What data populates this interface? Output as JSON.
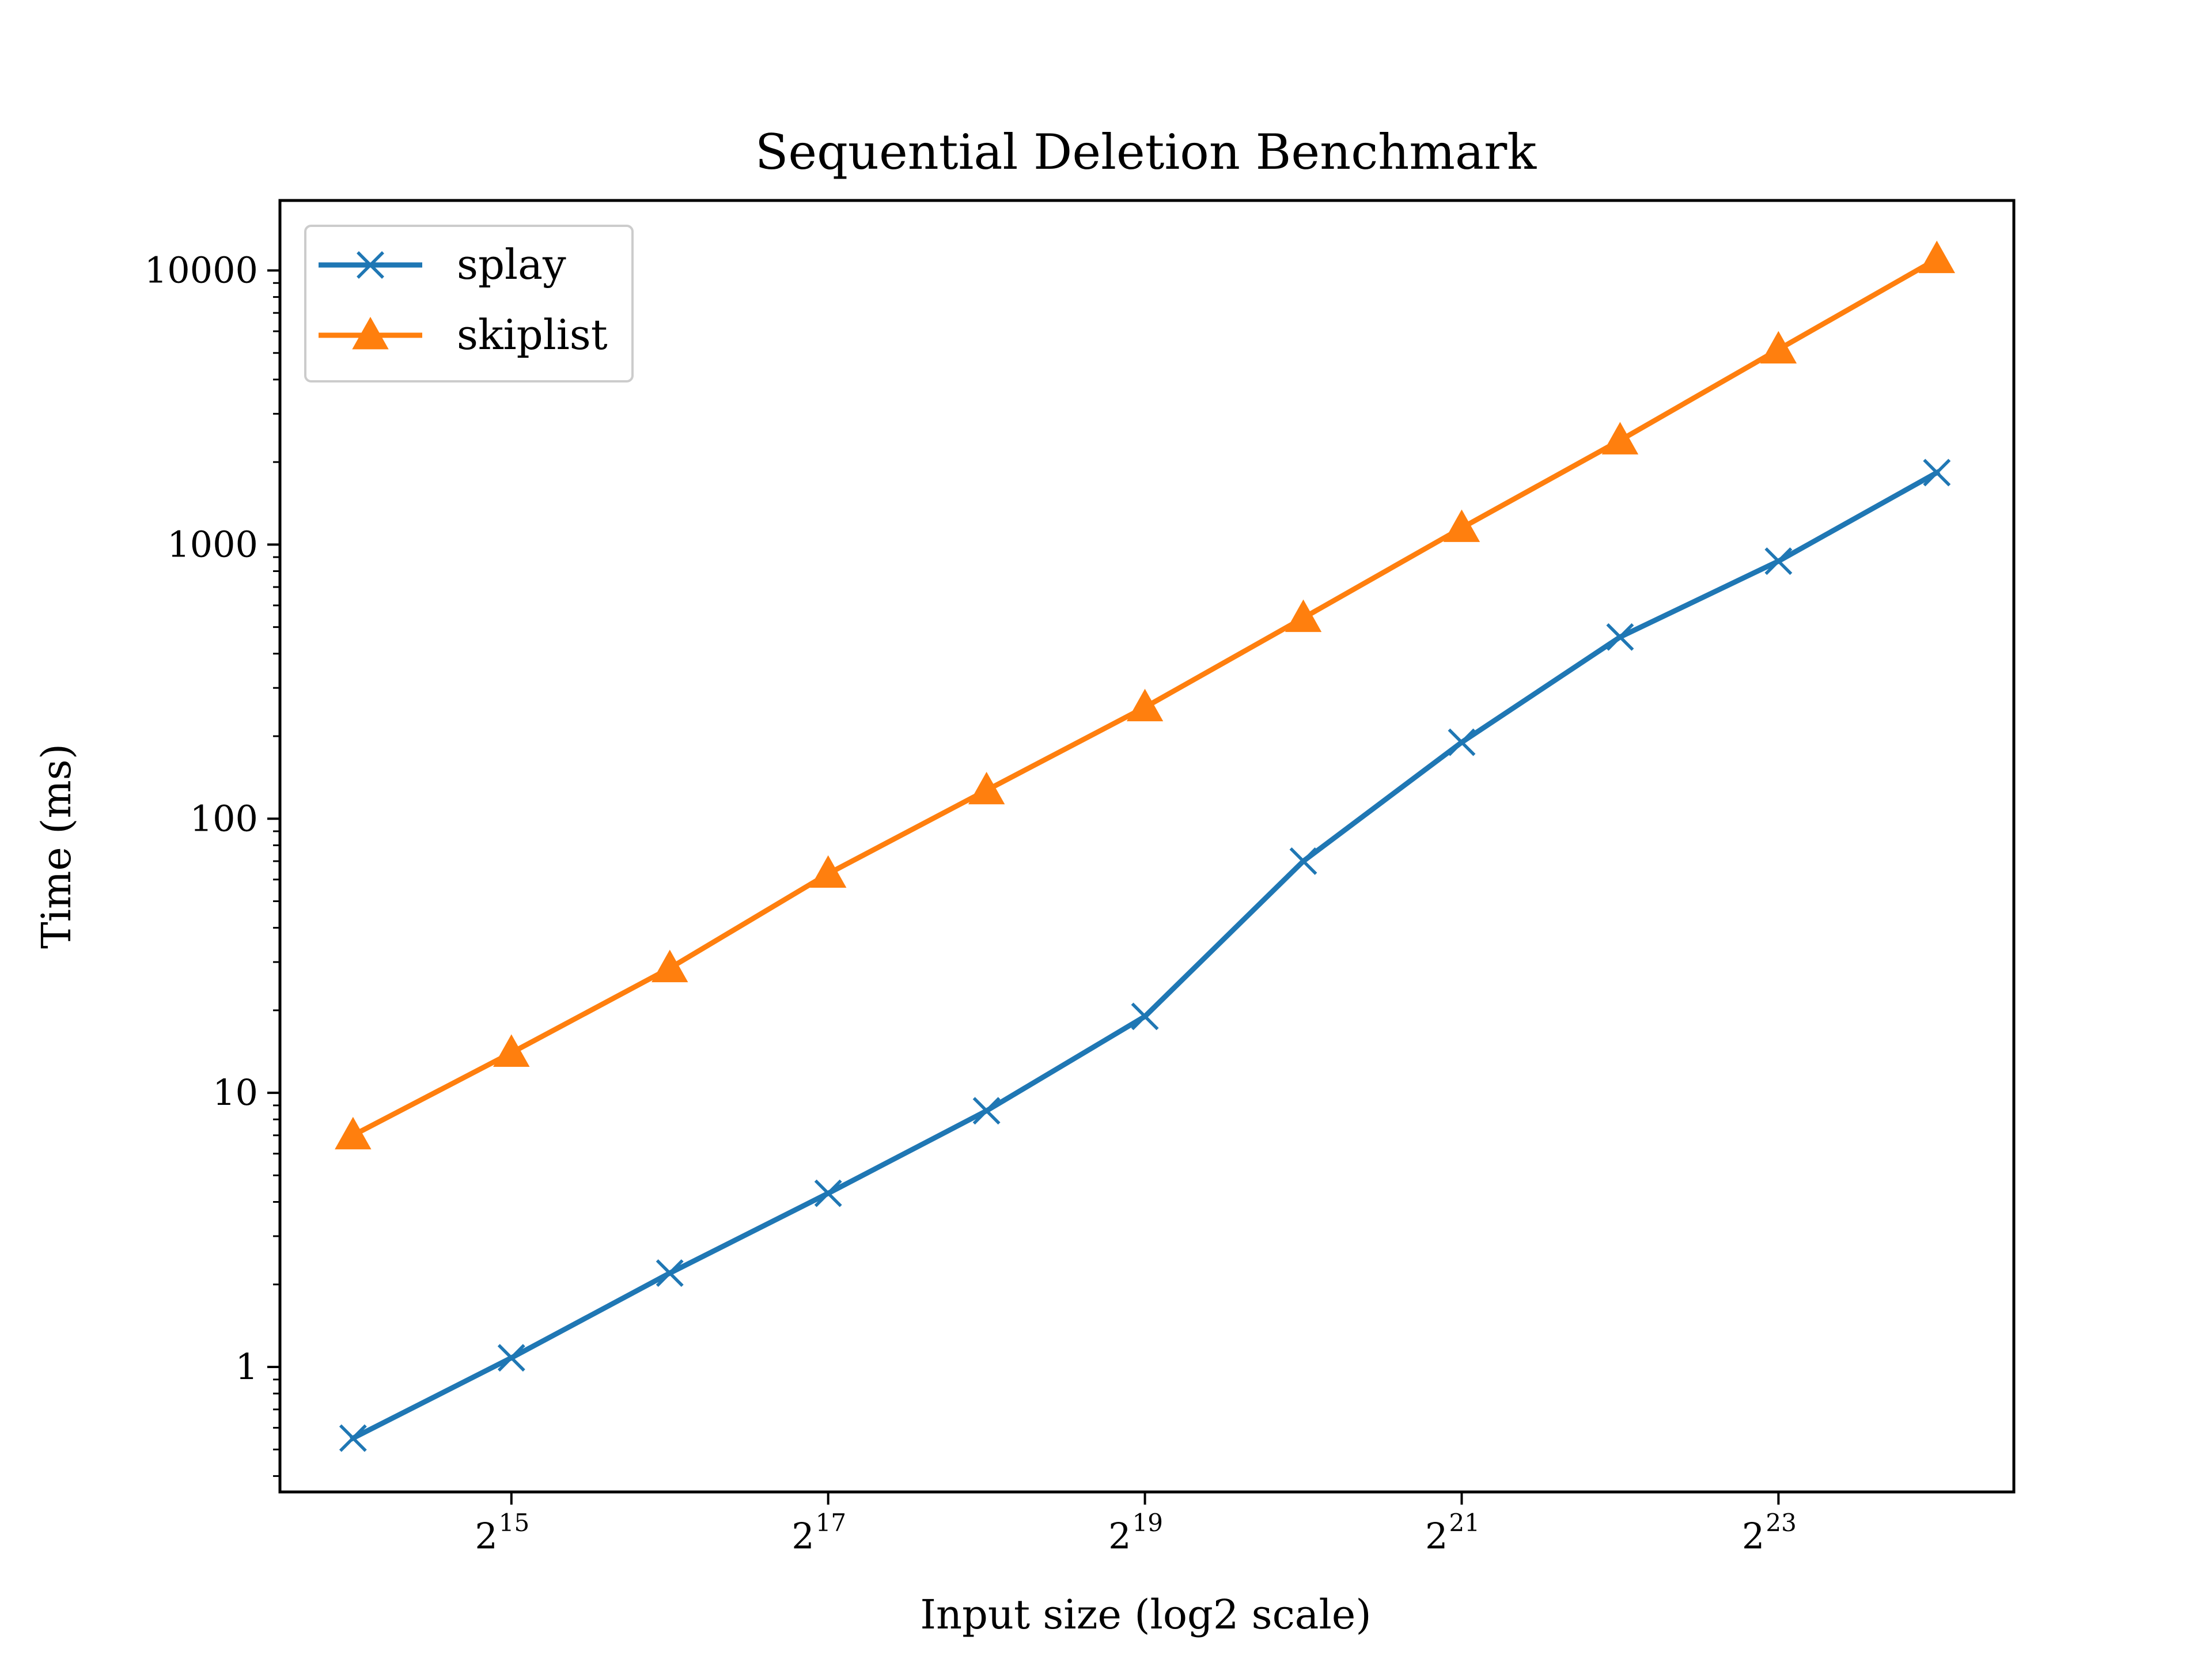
{
  "chart_data": {
    "type": "line",
    "title": "Sequential Deletion Benchmark",
    "xlabel": "Input size (log2 scale)",
    "ylabel": "Time (ms)",
    "x_scale": "log2",
    "y_scale": "log10",
    "x": [
      16384,
      32768,
      65536,
      131072,
      262144,
      524288,
      1048576,
      2097152,
      4194304,
      8388608,
      16777216
    ],
    "x_ticks": [
      {
        "value": 32768,
        "base": "2",
        "exp": "15"
      },
      {
        "value": 131072,
        "base": "2",
        "exp": "17"
      },
      {
        "value": 524288,
        "base": "2",
        "exp": "19"
      },
      {
        "value": 2097152,
        "base": "2",
        "exp": "21"
      },
      {
        "value": 8388608,
        "base": "2",
        "exp": "23"
      }
    ],
    "y_ticks": [
      {
        "value": 1,
        "label": "1"
      },
      {
        "value": 10,
        "label": "10"
      },
      {
        "value": 100,
        "label": "100"
      },
      {
        "value": 1000,
        "label": "1000"
      },
      {
        "value": 10000,
        "label": "10000"
      }
    ],
    "xlim": [
      11900,
      23500000
    ],
    "ylim": [
      0.35,
      18000
    ],
    "grid": false,
    "legend_position": "top-left",
    "series": [
      {
        "name": "splay",
        "color": "#1f77b4",
        "marker": "x",
        "values": [
          0.55,
          1.08,
          2.2,
          4.3,
          8.6,
          19,
          70,
          190,
          460,
          870,
          1830
        ]
      },
      {
        "name": "skiplist",
        "color": "#ff7f0e",
        "marker": "triangle",
        "values": [
          7,
          14,
          28.5,
          63,
          127,
          255,
          540,
          1150,
          2400,
          5150,
          11000
        ]
      }
    ]
  }
}
